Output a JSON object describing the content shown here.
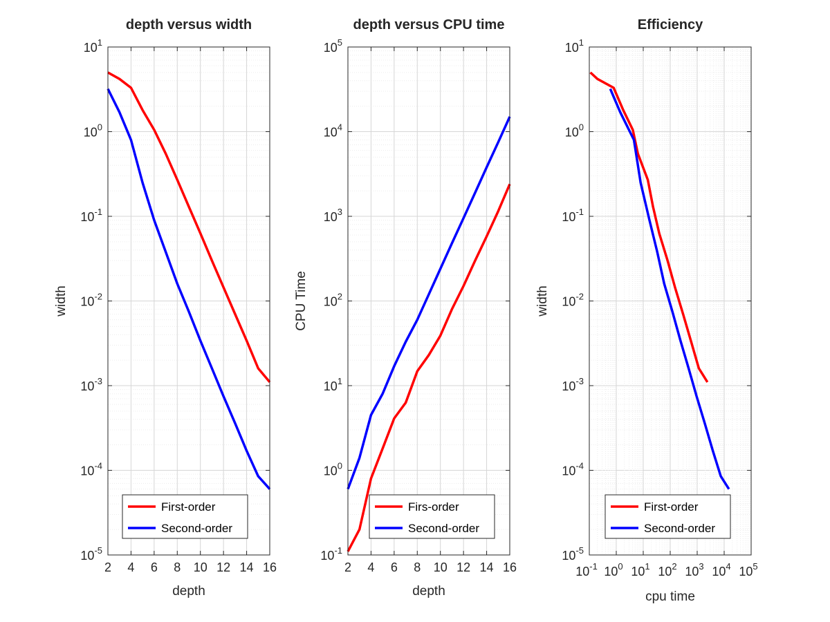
{
  "chart_data": [
    {
      "type": "line",
      "title": "depth versus width",
      "xlabel": "depth",
      "ylabel": "width",
      "xscale": "linear",
      "yscale": "log",
      "xlim": [
        2,
        16
      ],
      "ylim": [
        1e-05,
        10
      ],
      "xticks": [
        "2",
        "4",
        "6",
        "8",
        "10",
        "12",
        "14",
        "16"
      ],
      "yticks": [
        {
          "base": "10",
          "exp": "-5"
        },
        {
          "base": "10",
          "exp": "-4"
        },
        {
          "base": "10",
          "exp": "-3"
        },
        {
          "base": "10",
          "exp": "-2"
        },
        {
          "base": "10",
          "exp": "-1"
        },
        {
          "base": "10",
          "exp": "0"
        },
        {
          "base": "10",
          "exp": "1"
        }
      ],
      "grid": true,
      "legend_position": "bottom-center",
      "series": [
        {
          "name": "First-order",
          "color": "#ff0000",
          "x": [
            2,
            3,
            4,
            5,
            6,
            7,
            8,
            9,
            10,
            11,
            12,
            13,
            14,
            15,
            16
          ],
          "y": [
            5.0,
            4.2,
            3.3,
            1.8,
            1.05,
            0.55,
            0.27,
            0.13,
            0.063,
            0.03,
            0.0145,
            0.007,
            0.0034,
            0.0016,
            0.0011
          ]
        },
        {
          "name": "Second-order",
          "color": "#0000ff",
          "x": [
            2,
            3,
            4,
            5,
            6,
            7,
            8,
            9,
            10,
            11,
            12,
            13,
            14,
            15,
            16
          ],
          "y": [
            3.2,
            1.7,
            0.8,
            0.25,
            0.09,
            0.038,
            0.016,
            0.0075,
            0.0034,
            0.0016,
            0.00075,
            0.00036,
            0.00017,
            8.5e-05,
            6e-05
          ]
        }
      ]
    },
    {
      "type": "line",
      "title": "depth versus CPU time",
      "xlabel": "depth",
      "ylabel": "CPU Time",
      "xscale": "linear",
      "yscale": "log",
      "xlim": [
        2,
        16
      ],
      "ylim": [
        0.1,
        100000
      ],
      "xticks": [
        "2",
        "4",
        "6",
        "8",
        "10",
        "12",
        "14",
        "16"
      ],
      "yticks": [
        {
          "base": "10",
          "exp": "-1"
        },
        {
          "base": "10",
          "exp": "0"
        },
        {
          "base": "10",
          "exp": "1"
        },
        {
          "base": "10",
          "exp": "2"
        },
        {
          "base": "10",
          "exp": "3"
        },
        {
          "base": "10",
          "exp": "4"
        },
        {
          "base": "10",
          "exp": "5"
        }
      ],
      "grid": true,
      "legend_position": "bottom-center",
      "series": [
        {
          "name": "Firs-order",
          "color": "#ff0000",
          "x": [
            2,
            3,
            4,
            5,
            6,
            7,
            8,
            9,
            10,
            11,
            12,
            13,
            14,
            15,
            16
          ],
          "y": [
            0.11,
            0.2,
            0.8,
            1.8,
            4.1,
            6.3,
            14.8,
            23,
            39,
            80,
            150,
            300,
            580,
            1150,
            2400
          ]
        },
        {
          "name": "Second-order",
          "color": "#0000ff",
          "x": [
            2,
            3,
            4,
            5,
            6,
            7,
            8,
            9,
            10,
            11,
            12,
            13,
            14,
            15,
            16
          ],
          "y": [
            0.6,
            1.4,
            4.5,
            8,
            17,
            33,
            60,
            120,
            240,
            480,
            950,
            1900,
            3800,
            7500,
            15000
          ]
        }
      ]
    },
    {
      "type": "line",
      "title": "Efficiency",
      "xlabel": "cpu time",
      "ylabel": "width",
      "xscale": "log",
      "yscale": "log",
      "xlim": [
        0.1,
        100000
      ],
      "ylim": [
        1e-05,
        10
      ],
      "xticks": [
        {
          "base": "10",
          "exp": "-1"
        },
        {
          "base": "10",
          "exp": "0"
        },
        {
          "base": "10",
          "exp": "1"
        },
        {
          "base": "10",
          "exp": "2"
        },
        {
          "base": "10",
          "exp": "3"
        },
        {
          "base": "10",
          "exp": "4"
        },
        {
          "base": "10",
          "exp": "5"
        }
      ],
      "yticks": [
        {
          "base": "10",
          "exp": "-5"
        },
        {
          "base": "10",
          "exp": "-4"
        },
        {
          "base": "10",
          "exp": "-3"
        },
        {
          "base": "10",
          "exp": "-2"
        },
        {
          "base": "10",
          "exp": "-1"
        },
        {
          "base": "10",
          "exp": "0"
        },
        {
          "base": "10",
          "exp": "1"
        }
      ],
      "grid": true,
      "legend_position": "bottom-center",
      "series": [
        {
          "name": "First-order",
          "color": "#ff0000",
          "x": [
            0.11,
            0.2,
            0.8,
            1.8,
            4.1,
            6.3,
            14.8,
            23,
            39,
            80,
            150,
            300,
            580,
            1150,
            2400
          ],
          "y": [
            5.0,
            4.2,
            3.3,
            1.8,
            1.05,
            0.55,
            0.27,
            0.13,
            0.063,
            0.03,
            0.0145,
            0.007,
            0.0034,
            0.0016,
            0.0011
          ]
        },
        {
          "name": "Second-order",
          "color": "#0000ff",
          "x": [
            0.6,
            1.4,
            4.5,
            8,
            17,
            33,
            60,
            120,
            240,
            480,
            950,
            1900,
            3800,
            7500,
            15000
          ],
          "y": [
            3.2,
            1.7,
            0.8,
            0.25,
            0.09,
            0.038,
            0.016,
            0.0075,
            0.0034,
            0.0016,
            0.00075,
            0.00036,
            0.00017,
            8.5e-05,
            6e-05
          ]
        }
      ]
    }
  ]
}
